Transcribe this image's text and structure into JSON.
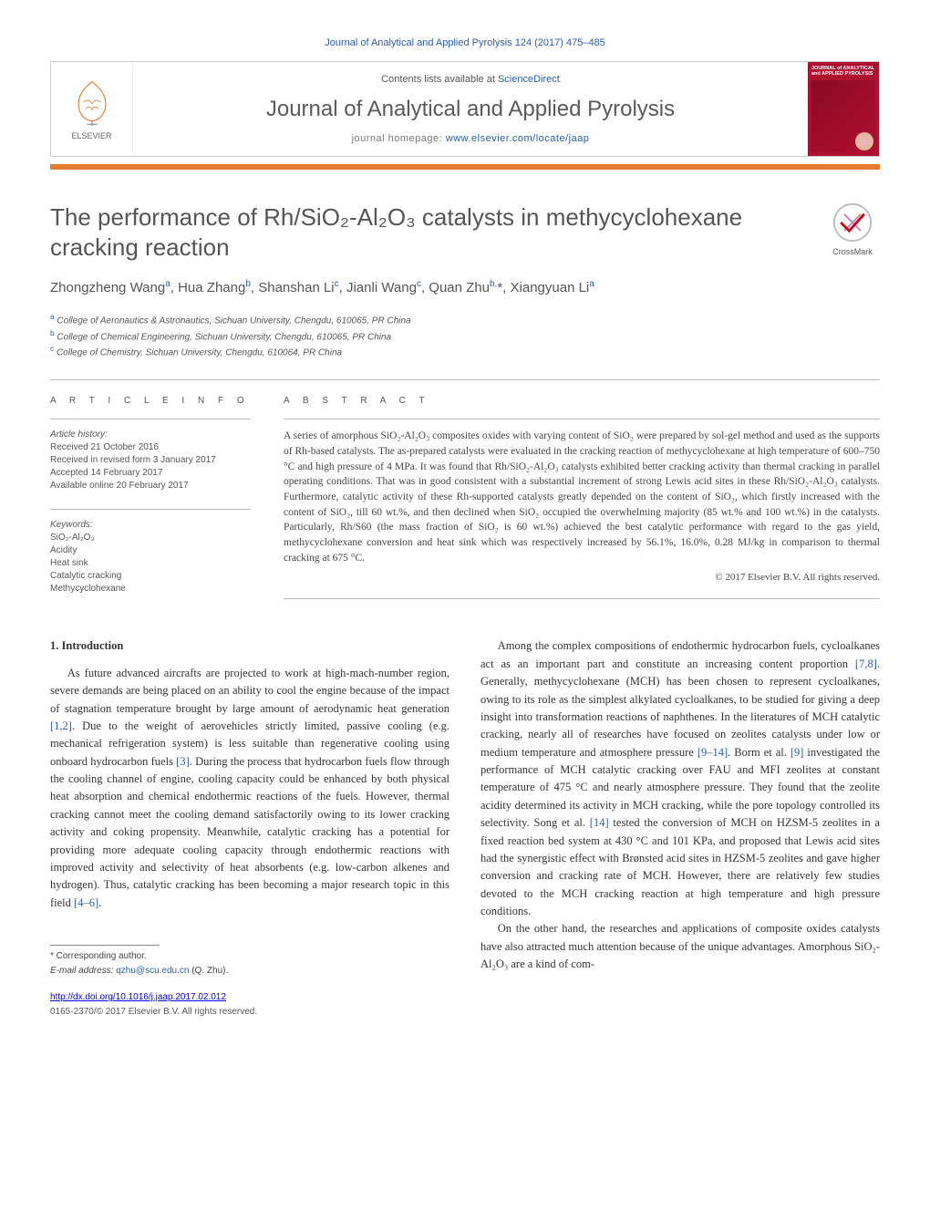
{
  "citation": "Journal of Analytical and Applied Pyrolysis 124 (2017) 475–485",
  "header": {
    "contents_prefix": "Contents lists available at ",
    "contents_link": "ScienceDirect",
    "journal_name": "Journal of Analytical and Applied Pyrolysis",
    "homepage_prefix": "journal homepage: ",
    "homepage_link": "www.elsevier.com/locate/jaap",
    "elsevier_label": "ELSEVIER",
    "cover_text": "JOURNAL of ANALYTICAL and APPLIED PYROLYSIS"
  },
  "crossmark_label": "CrossMark",
  "title": "The performance of Rh/SiO₂-Al₂O₃ catalysts in methycyclohexane cracking reaction",
  "authors_html": "Zhongzheng Wang<sup>a</sup>, Hua Zhang<sup>b</sup>, Shanshan Li<sup>c</sup>, Jianli Wang<sup>c</sup>, Quan Zhu<sup>b,</sup>*, Xiangyuan Li<sup>a</sup>",
  "affiliations": [
    {
      "sup": "a",
      "text": "College of Aeronautics & Astronautics, Sichuan University, Chengdu, 610065, PR China"
    },
    {
      "sup": "b",
      "text": "College of Chemical Engineering, Sichuan University, Chengdu, 610065, PR China"
    },
    {
      "sup": "c",
      "text": "College of Chemistry, Sichuan University, Chengdu, 610064, PR China"
    }
  ],
  "article_info": {
    "heading": "a r t i c l e   i n f o",
    "history_label": "Article history:",
    "history": [
      "Received 21 October 2016",
      "Received in revised form 3 January 2017",
      "Accepted 14 February 2017",
      "Available online 20 February 2017"
    ],
    "keywords_label": "Keywords:",
    "keywords": [
      "SiO₂-Al₂O₃",
      "Acidity",
      "Heat sink",
      "Catalytic cracking",
      "Methycyclohexane"
    ]
  },
  "abstract": {
    "heading": "a b s t r a c t",
    "text": "A series of amorphous SiO₂-Al₂O₃ composites oxides with varying content of SiO₂ were prepared by sol-gel method and used as the supports of Rh-based catalysts. The as-prepared catalysts were evaluated in the cracking reaction of methycyclohexane at high temperature of 600–750 °C and high pressure of 4 MPa. It was found that Rh/SiO₂-Al₂O₃ catalysts exhibited better cracking activity than thermal cracking in parallel operating conditions. That was in good consistent with a substantial increment of strong Lewis acid sites in these Rh/SiO₂-Al₂O₃ catalysts. Furthermore, catalytic activity of these Rh-supported catalysts greatly depended on the content of SiO₂, which firstly increased with the content of SiO₂, till 60 wt.%, and then declined when SiO₂ occupied the overwhelming majority (85 wt.% and 100 wt.%) in the catalysts. Particularly, Rh/S60 (the mass fraction of SiO₂ is 60 wt.%) achieved the best catalytic performance with regard to the gas yield, methycyclohexane conversion and heat sink which was respectively increased by 56.1%, 16.0%, 0.28 MJ/kg in comparison to thermal cracking at 675 °C.",
    "copyright": "© 2017 Elsevier B.V. All rights reserved."
  },
  "body": {
    "section1_head": "1. Introduction",
    "col1_p1": "As future advanced aircrafts are projected to work at high-mach-number region, severe demands are being placed on an ability to cool the engine because of the impact of stagnation temperature brought by large amount of aerodynamic heat generation <span class='cite'>[1,2]</span>. Due to the weight of aerovehicles strictly limited, passive cooling (e.g. mechanical refrigeration system) is less suitable than regenerative cooling using onboard hydrocarbon fuels <span class='cite'>[3]</span>. During the process that hydrocarbon fuels flow through the cooling channel of engine, cooling capacity could be enhanced by both physical heat absorption and chemical endothermic reactions of the fuels. However, thermal cracking cannot meet the cooling demand satisfactorily owing to its lower cracking activity and coking propensity. Meanwhile, catalytic cracking has a potential for providing more adequate cooling capacity through endothermic reactions with improved activity and selectivity of heat absorbents (e.g. low-carbon alkenes and hydrogen). Thus, catalytic cracking has been becoming a major research topic in this field <span class='cite'>[4–6]</span>.",
    "col2_p1": "Among the complex compositions of endothermic hydrocarbon fuels, cycloalkanes act as an important part and constitute an increasing content proportion <span class='cite'>[7,8]</span>. Generally, methycyclohexane (MCH) has been chosen to represent cycloalkanes, owing to its role as the simplest alkylated cycloalkanes, to be studied for giving a deep insight into transformation reactions of naphthenes. In the literatures of MCH catalytic cracking, nearly all of researches have focused on zeolites catalysts under low or medium temperature and atmosphere pressure <span class='cite'>[9–14]</span>. Borm et al. <span class='cite'>[9]</span> investigated the performance of MCH catalytic cracking over FAU and MFI zeolites at constant temperature of 475 °C and nearly atmosphere pressure. They found that the zeolite acidity determined its activity in MCH cracking, while the pore topology controlled its selectivity. Song et al. <span class='cite'>[14]</span> tested the conversion of MCH on HZSM-5 zeolites in a fixed reaction bed system at 430 °C and 101 KPa, and proposed that Lewis acid sites had the synergistic effect with Brønsted acid sites in HZSM-5 zeolites and gave higher conversion and cracking rate of MCH. However, there are relatively few studies devoted to the MCH cracking reaction at high temperature and high pressure conditions.",
    "col2_p2": "On the other hand, the researches and applications of composite oxides catalysts have also attracted much attention because of the unique advantages. Amorphous SiO₂-Al₂O₃ are a kind of com-"
  },
  "footer": {
    "corr_label": "* Corresponding author.",
    "email_label": "E-mail address: ",
    "email": "qzhu@scu.edu.cn",
    "email_suffix": " (Q. Zhu).",
    "doi": "http://dx.doi.org/10.1016/j.jaap.2017.02.012",
    "issn": "0165-2370/© 2017 Elsevier B.V. All rights reserved."
  },
  "colors": {
    "link": "#2a5db0",
    "orange_rule": "#e8792e",
    "cover_bg": "#b01030",
    "text": "#333333",
    "muted": "#555555"
  }
}
